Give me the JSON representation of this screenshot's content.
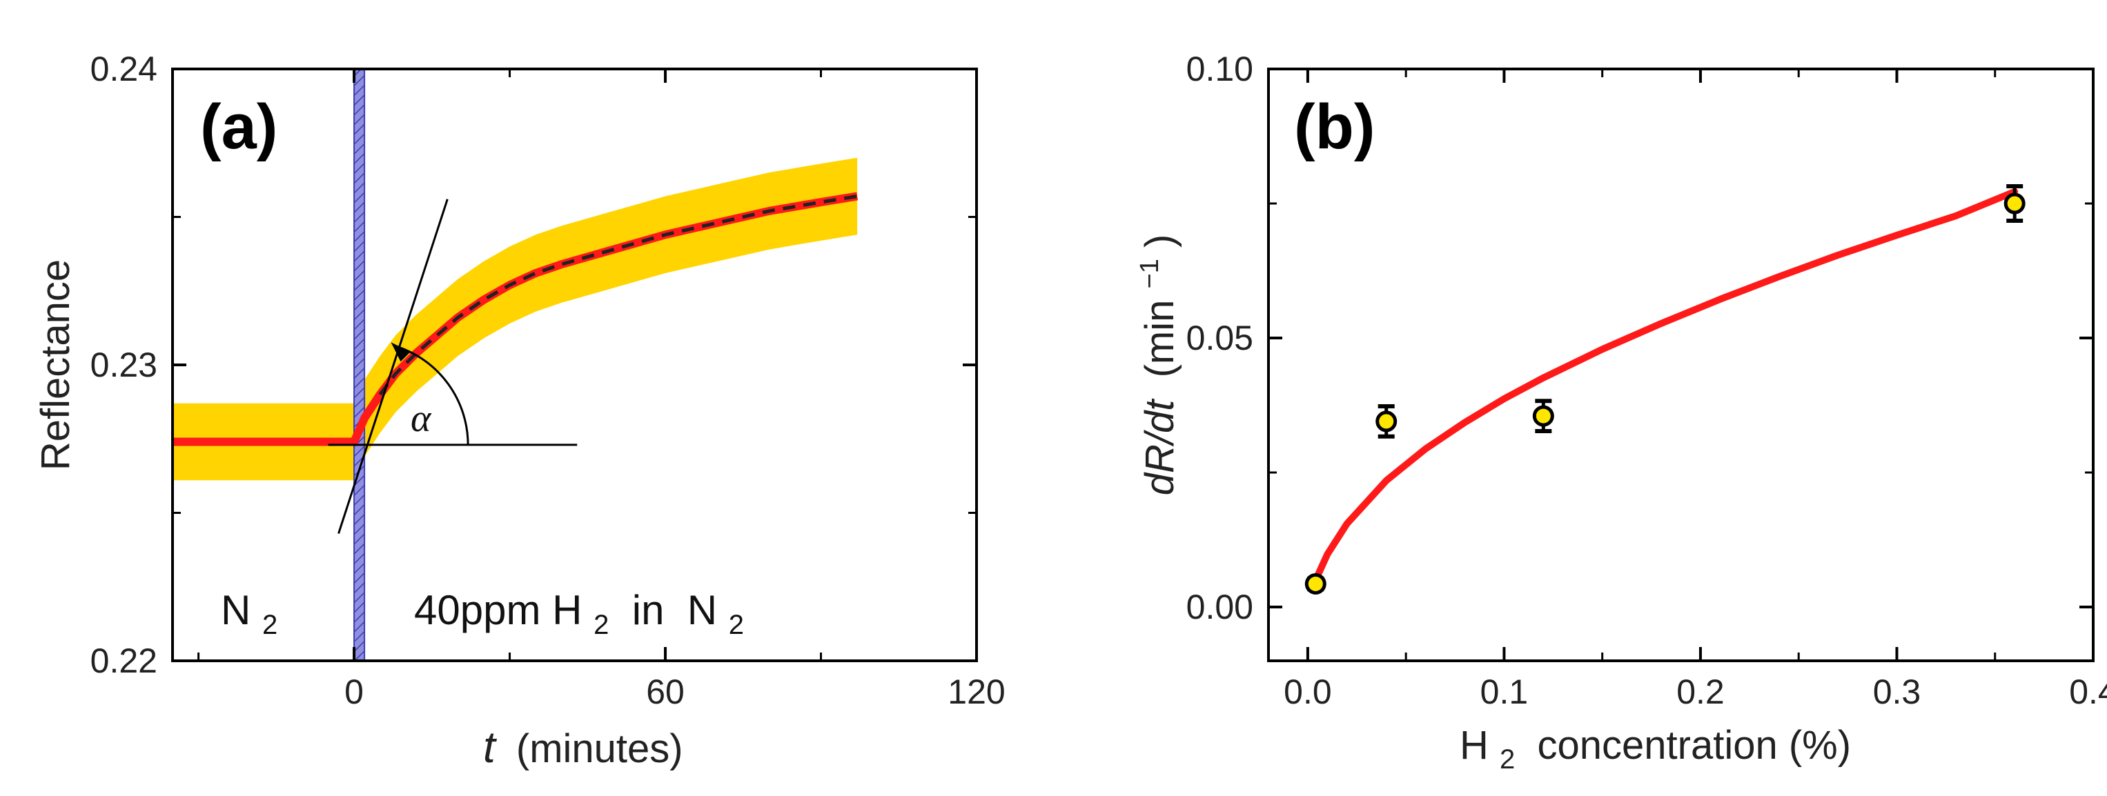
{
  "chart_data": [
    {
      "panel": "(a)",
      "type": "line",
      "xlabel_var": "t",
      "xlabel_unit": "(minutes)",
      "ylabel": "Reflectance",
      "xlim": [
        -35,
        120
      ],
      "ylim": [
        0.22,
        0.24
      ],
      "x_ticks": [
        0,
        60,
        120
      ],
      "y_ticks": [
        0.22,
        0.23,
        0.24
      ],
      "x_tick_labels": [
        "0",
        "60",
        "120"
      ],
      "y_tick_labels": [
        "0.22",
        "0.23",
        "0.24"
      ],
      "series": [
        {
          "x": [
            -35,
            -20,
            -10,
            -3,
            0,
            2,
            5,
            8,
            12,
            16,
            20,
            25,
            30,
            35,
            40,
            50,
            60,
            70,
            80,
            90,
            97
          ],
          "y": [
            0.2274,
            0.2274,
            0.2274,
            0.2274,
            0.2274,
            0.2282,
            0.229,
            0.2297,
            0.2304,
            0.231,
            0.2316,
            0.2322,
            0.2327,
            0.2331,
            0.2334,
            0.2339,
            0.2344,
            0.2348,
            0.2352,
            0.2355,
            0.2357
          ],
          "band_halfwidth": 0.0013,
          "color": "#ff1a1a",
          "band_color": "#ffd400"
        }
      ],
      "shaded_region_x": [
        0,
        2
      ],
      "tangent_line": {
        "x": [
          -3,
          18
        ],
        "y": [
          0.2243,
          0.2356
        ]
      },
      "baseline_line": {
        "x": [
          -5,
          43
        ],
        "y": [
          0.2273,
          0.2273
        ]
      },
      "annotations": {
        "n2_left": "N",
        "n2_left_sub": "2",
        "gas_label_main": "40ppm H",
        "gas_label_sub": "2",
        "gas_label_rest": " in  N",
        "gas_label_sub2": "2",
        "angle": "α"
      }
    },
    {
      "panel": "(b)",
      "type": "scatter",
      "xlabel_pre": "H",
      "xlabel_sub": "2",
      "xlabel_post": " concentration (%)",
      "ylabel_var": "dR/dt",
      "ylabel_unit_pre": " (min",
      "ylabel_unit_sup": "−1",
      "ylabel_unit_post": ")",
      "xlim": [
        -0.02,
        0.4
      ],
      "ylim": [
        -0.01,
        0.1
      ],
      "x_ticks": [
        0.0,
        0.1,
        0.2,
        0.3,
        0.4
      ],
      "y_ticks": [
        0.0,
        0.05,
        0.1
      ],
      "x_tick_labels": [
        "0.0",
        "0.1",
        "0.2",
        "0.3",
        "0.4"
      ],
      "y_tick_labels": [
        "0.00",
        "0.05",
        "0.10"
      ],
      "points": [
        {
          "x": 0.004,
          "y": 0.0043,
          "err": 0.001
        },
        {
          "x": 0.04,
          "y": 0.0345,
          "err": 0.0028
        },
        {
          "x": 0.12,
          "y": 0.0355,
          "err": 0.0028
        },
        {
          "x": 0.36,
          "y": 0.075,
          "err": 0.0032
        }
      ],
      "fit_curve": {
        "x": [
          0.004,
          0.01,
          0.02,
          0.04,
          0.06,
          0.08,
          0.1,
          0.12,
          0.15,
          0.18,
          0.21,
          0.24,
          0.27,
          0.3,
          0.33,
          0.36
        ],
        "y": [
          0.005,
          0.0098,
          0.0155,
          0.0235,
          0.0294,
          0.0343,
          0.0387,
          0.0426,
          0.0479,
          0.0527,
          0.0572,
          0.0614,
          0.0654,
          0.0691,
          0.0727,
          0.0772
        ]
      },
      "point_fill": "#ffe600",
      "fit_color": "#ff1a1a"
    }
  ]
}
